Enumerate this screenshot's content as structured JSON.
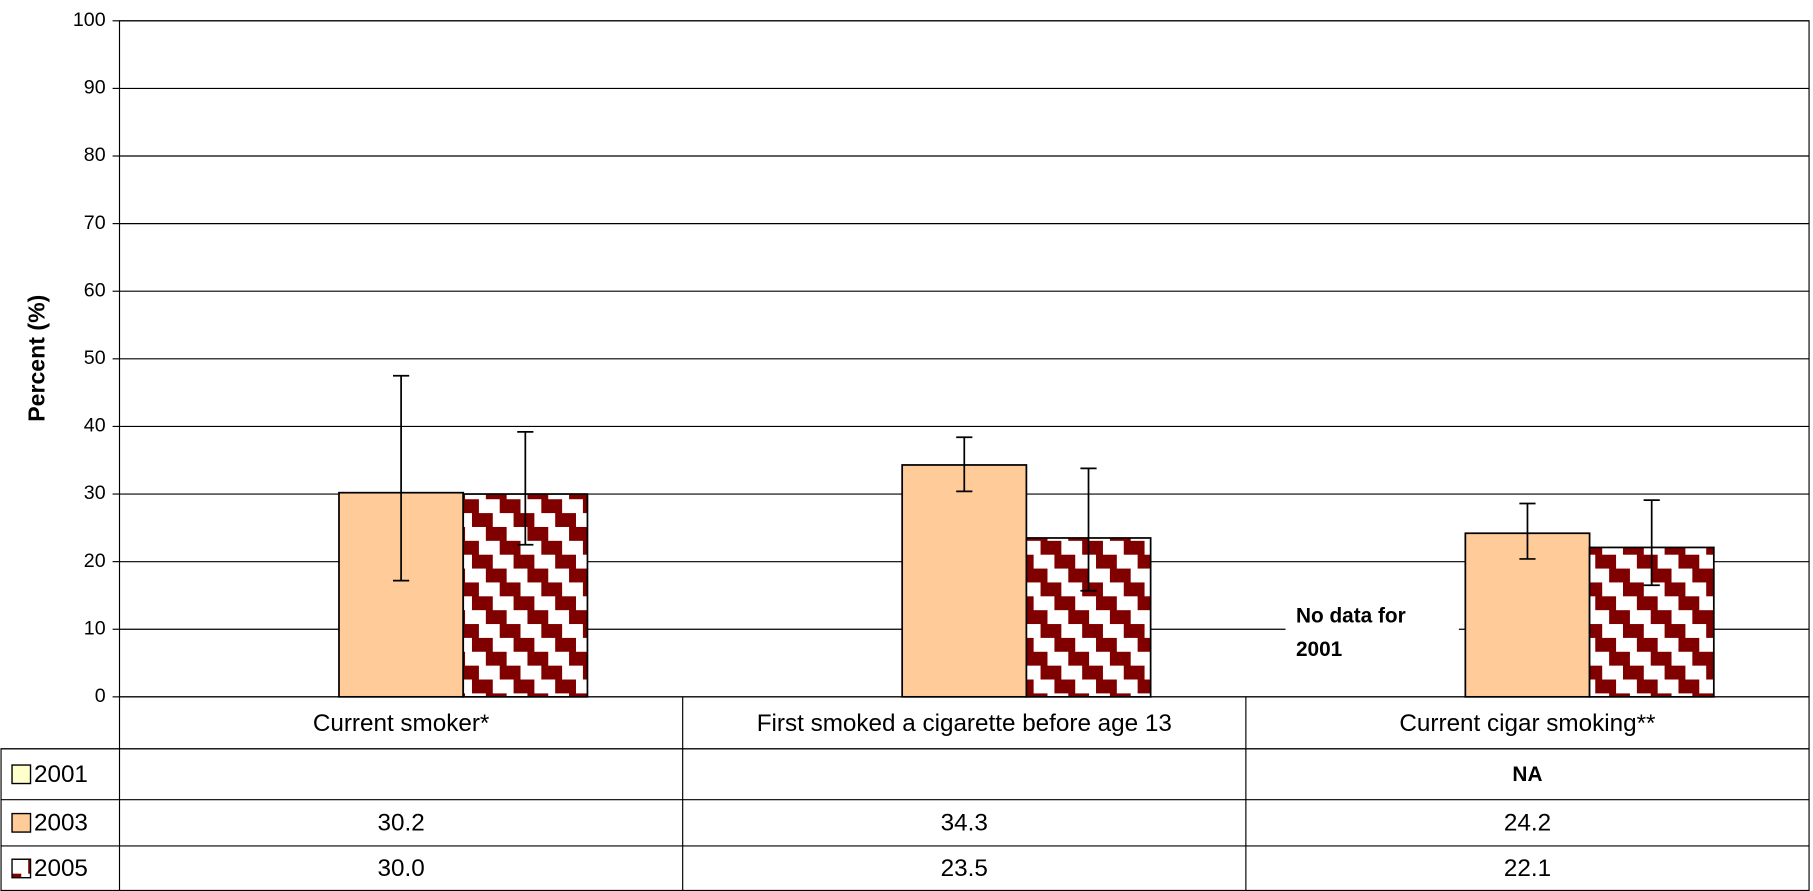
{
  "chart_data": {
    "type": "bar",
    "y_label": "Percent (%)",
    "categories": [
      "Current smoker*",
      "First smoked a cigarette before age 13",
      "Current cigar smoking**"
    ],
    "series": [
      {
        "name": "2001",
        "color": "#ffffcc",
        "values": [
          null,
          null,
          null
        ],
        "value_labels": [
          null,
          null,
          "NA"
        ]
      },
      {
        "name": "2003",
        "color": "#ffcc99",
        "values": [
          30.2,
          34.3,
          24.2
        ],
        "ci_low": [
          17.2,
          30.4,
          20.4
        ],
        "ci_high": [
          47.5,
          38.4,
          28.6
        ]
      },
      {
        "name": "2005",
        "color": "#800000",
        "pattern": "stairs",
        "values": [
          30.0,
          23.5,
          22.1
        ],
        "value_labels": [
          "30.0",
          "23.5",
          "22.1"
        ],
        "ci_low": [
          22.5,
          15.7,
          16.5
        ],
        "ci_high": [
          39.2,
          33.8,
          29.1
        ]
      }
    ],
    "annotation": [
      "No data for",
      "2001"
    ],
    "ylim": [
      0,
      100
    ],
    "yticks": [
      0,
      10,
      20,
      30,
      40,
      50,
      60,
      70,
      80,
      90,
      100
    ],
    "grid": true,
    "data_table": true
  }
}
